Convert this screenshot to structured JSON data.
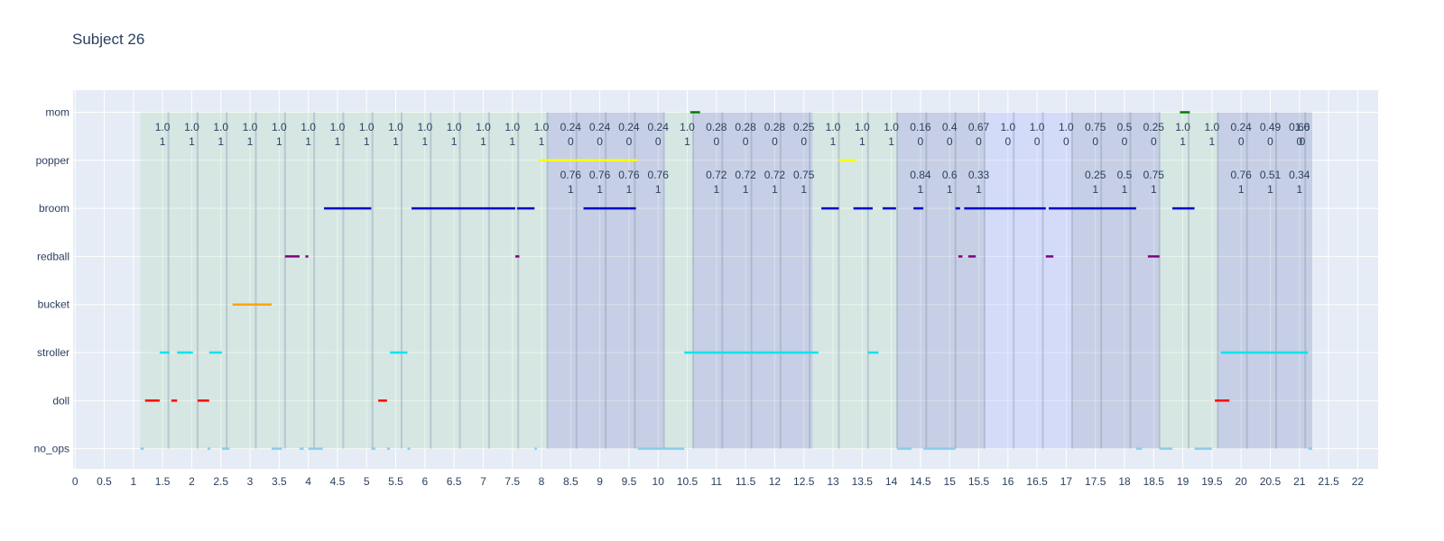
{
  "chart_data": {
    "type": "timeline",
    "title": "Subject 26",
    "xlim": [
      -0.05,
      22.35
    ],
    "x_ticks": [
      "0",
      "0.5",
      "1",
      "1.5",
      "2",
      "2.5",
      "3",
      "3.5",
      "4",
      "4.5",
      "5",
      "5.5",
      "6",
      "6.5",
      "7",
      "7.5",
      "8",
      "8.5",
      "9",
      "9.5",
      "10",
      "10.5",
      "11",
      "11.5",
      "12",
      "12.5",
      "13",
      "13.5",
      "14",
      "14.5",
      "15",
      "15.5",
      "16",
      "16.5",
      "17",
      "17.5",
      "18",
      "18.5",
      "19",
      "19.5",
      "20",
      "20.5",
      "21",
      "21.5",
      "22"
    ],
    "categories": [
      "no_ops",
      "doll",
      "stroller",
      "bucket",
      "redball",
      "broom",
      "popper",
      "mom"
    ],
    "colors": {
      "background": "#e5ecf6",
      "grid": "#ffffff",
      "text": "#2a3f5f",
      "region_green": "#9ed29e",
      "region_blue": "#3c4e9a",
      "region_violet": "#aab4ff",
      "mom": "#008000",
      "popper": "#ffff00",
      "broom": "#0000cd",
      "redball": "#800080",
      "bucket": "#ffa500",
      "stroller": "#00e5ee",
      "doll": "#ff0000",
      "no_ops": "#87ceeb"
    },
    "segments": {
      "mom": [
        [
          10.55,
          10.72
        ],
        [
          18.95,
          19.12
        ]
      ],
      "popper": [
        [
          7.95,
          9.65
        ],
        [
          13.1,
          13.4
        ]
      ],
      "broom": [
        [
          4.27,
          5.08
        ],
        [
          5.77,
          7.55
        ],
        [
          7.58,
          7.88
        ],
        [
          8.72,
          9.62
        ],
        [
          12.8,
          13.1
        ],
        [
          13.35,
          13.68
        ],
        [
          13.85,
          14.08
        ],
        [
          14.38,
          14.55
        ],
        [
          15.1,
          15.18
        ],
        [
          15.25,
          16.65
        ],
        [
          16.7,
          18.2
        ],
        [
          18.82,
          19.2
        ]
      ],
      "redball": [
        [
          3.6,
          3.85
        ],
        [
          3.95,
          4.0
        ],
        [
          7.55,
          7.62
        ],
        [
          15.15,
          15.22
        ],
        [
          15.32,
          15.45
        ],
        [
          16.65,
          16.78
        ],
        [
          18.4,
          18.6
        ]
      ],
      "bucket": [
        [
          2.7,
          3.37
        ]
      ],
      "stroller": [
        [
          1.45,
          1.62
        ],
        [
          1.75,
          2.02
        ],
        [
          2.3,
          2.52
        ],
        [
          5.4,
          5.7
        ],
        [
          10.45,
          12.75
        ],
        [
          13.6,
          13.78
        ],
        [
          19.65,
          21.15
        ]
      ],
      "doll": [
        [
          1.2,
          1.45
        ],
        [
          1.65,
          1.75
        ],
        [
          2.1,
          2.3
        ],
        [
          5.2,
          5.35
        ],
        [
          19.55,
          19.8
        ]
      ],
      "no_ops": [
        [
          1.12,
          1.18
        ],
        [
          2.27,
          2.32
        ],
        [
          2.52,
          2.65
        ],
        [
          3.37,
          3.55
        ],
        [
          3.85,
          3.92
        ],
        [
          4.0,
          4.25
        ],
        [
          5.08,
          5.15
        ],
        [
          5.35,
          5.4
        ],
        [
          5.7,
          5.75
        ],
        [
          7.88,
          7.92
        ],
        [
          9.65,
          10.45
        ],
        [
          14.1,
          14.35
        ],
        [
          14.55,
          15.1
        ],
        [
          18.2,
          18.3
        ],
        [
          18.6,
          18.82
        ],
        [
          19.2,
          19.5
        ],
        [
          21.15,
          21.22
        ]
      ]
    },
    "regions": [
      {
        "x0": 1.12,
        "x1": 8.1,
        "kind": "green"
      },
      {
        "x0": 8.1,
        "x1": 10.1,
        "kind": "blue"
      },
      {
        "x0": 10.1,
        "x1": 10.6,
        "kind": "green"
      },
      {
        "x0": 10.6,
        "x1": 12.65,
        "kind": "blue"
      },
      {
        "x0": 12.65,
        "x1": 14.1,
        "kind": "green"
      },
      {
        "x0": 14.1,
        "x1": 15.6,
        "kind": "blue"
      },
      {
        "x0": 15.6,
        "x1": 17.1,
        "kind": "violet"
      },
      {
        "x0": 17.1,
        "x1": 18.6,
        "kind": "blue"
      },
      {
        "x0": 18.6,
        "x1": 19.6,
        "kind": "green"
      },
      {
        "x0": 19.6,
        "x1": 21.22,
        "kind": "blue"
      }
    ],
    "dividers": [
      1.6,
      2.1,
      2.6,
      3.1,
      3.6,
      4.1,
      4.6,
      5.1,
      5.6,
      6.1,
      6.6,
      7.1,
      7.6,
      8.1,
      8.6,
      9.1,
      9.6,
      10.1,
      10.6,
      11.1,
      11.6,
      12.1,
      12.6,
      13.1,
      13.6,
      14.1,
      14.6,
      15.1,
      15.6,
      16.1,
      16.6,
      17.1,
      17.6,
      18.1,
      18.6,
      19.1,
      19.6,
      20.1,
      20.6,
      21.1
    ],
    "annotations_top": [
      {
        "x": 1.5,
        "l1": "1.0",
        "l2": "1"
      },
      {
        "x": 2.0,
        "l1": "1.0",
        "l2": "1"
      },
      {
        "x": 2.5,
        "l1": "1.0",
        "l2": "1"
      },
      {
        "x": 3.0,
        "l1": "1.0",
        "l2": "1"
      },
      {
        "x": 3.5,
        "l1": "1.0",
        "l2": "1"
      },
      {
        "x": 4.0,
        "l1": "1.0",
        "l2": "1"
      },
      {
        "x": 4.5,
        "l1": "1.0",
        "l2": "1"
      },
      {
        "x": 5.0,
        "l1": "1.0",
        "l2": "1"
      },
      {
        "x": 5.5,
        "l1": "1.0",
        "l2": "1"
      },
      {
        "x": 6.0,
        "l1": "1.0",
        "l2": "1"
      },
      {
        "x": 6.5,
        "l1": "1.0",
        "l2": "1"
      },
      {
        "x": 7.0,
        "l1": "1.0",
        "l2": "1"
      },
      {
        "x": 7.5,
        "l1": "1.0",
        "l2": "1"
      },
      {
        "x": 8.0,
        "l1": "1.0",
        "l2": "1"
      },
      {
        "x": 8.5,
        "l1": "0.24",
        "l2": "0"
      },
      {
        "x": 9.0,
        "l1": "0.24",
        "l2": "0"
      },
      {
        "x": 9.5,
        "l1": "0.24",
        "l2": "0"
      },
      {
        "x": 10.0,
        "l1": "0.24",
        "l2": "0"
      },
      {
        "x": 10.5,
        "l1": "1.0",
        "l2": "1"
      },
      {
        "x": 11.0,
        "l1": "0.28",
        "l2": "0"
      },
      {
        "x": 11.5,
        "l1": "0.28",
        "l2": "0"
      },
      {
        "x": 12.0,
        "l1": "0.28",
        "l2": "0"
      },
      {
        "x": 12.5,
        "l1": "0.25",
        "l2": "0"
      },
      {
        "x": 13.0,
        "l1": "1.0",
        "l2": "1"
      },
      {
        "x": 13.5,
        "l1": "1.0",
        "l2": "1"
      },
      {
        "x": 14.0,
        "l1": "1.0",
        "l2": "1"
      },
      {
        "x": 14.5,
        "l1": "0.16",
        "l2": "0"
      },
      {
        "x": 15.0,
        "l1": "0.4",
        "l2": "0"
      },
      {
        "x": 15.5,
        "l1": "0.67",
        "l2": "0"
      },
      {
        "x": 16.0,
        "l1": "1.0",
        "l2": "0"
      },
      {
        "x": 16.5,
        "l1": "1.0",
        "l2": "0"
      },
      {
        "x": 17.0,
        "l1": "1.0",
        "l2": "0"
      },
      {
        "x": 17.5,
        "l1": "0.75",
        "l2": "0"
      },
      {
        "x": 18.0,
        "l1": "0.5",
        "l2": "0"
      },
      {
        "x": 18.5,
        "l1": "0.25",
        "l2": "0"
      },
      {
        "x": 19.0,
        "l1": "1.0",
        "l2": "1"
      },
      {
        "x": 19.5,
        "l1": "1.0",
        "l2": "1"
      },
      {
        "x": 20.0,
        "l1": "0.24",
        "l2": "0"
      },
      {
        "x": 20.5,
        "l1": "0.49",
        "l2": "0"
      },
      {
        "x": 21.0,
        "l1": "0.66",
        "l2": "0"
      },
      {
        "x": 21.05,
        "l1": "1.0",
        "l2": "0"
      }
    ],
    "annotations_mid": [
      {
        "x": 8.5,
        "l1": "0.76",
        "l2": "1"
      },
      {
        "x": 9.0,
        "l1": "0.76",
        "l2": "1"
      },
      {
        "x": 9.5,
        "l1": "0.76",
        "l2": "1"
      },
      {
        "x": 10.0,
        "l1": "0.76",
        "l2": "1"
      },
      {
        "x": 11.0,
        "l1": "0.72",
        "l2": "1"
      },
      {
        "x": 11.5,
        "l1": "0.72",
        "l2": "1"
      },
      {
        "x": 12.0,
        "l1": "0.72",
        "l2": "1"
      },
      {
        "x": 12.5,
        "l1": "0.75",
        "l2": "1"
      },
      {
        "x": 14.5,
        "l1": "0.84",
        "l2": "1"
      },
      {
        "x": 15.0,
        "l1": "0.6",
        "l2": "1"
      },
      {
        "x": 15.5,
        "l1": "0.33",
        "l2": "1"
      },
      {
        "x": 17.5,
        "l1": "0.25",
        "l2": "1"
      },
      {
        "x": 18.0,
        "l1": "0.5",
        "l2": "1"
      },
      {
        "x": 18.5,
        "l1": "0.75",
        "l2": "1"
      },
      {
        "x": 20.0,
        "l1": "0.76",
        "l2": "1"
      },
      {
        "x": 20.5,
        "l1": "0.51",
        "l2": "1"
      },
      {
        "x": 21.0,
        "l1": "0.34",
        "l2": "1"
      }
    ]
  }
}
